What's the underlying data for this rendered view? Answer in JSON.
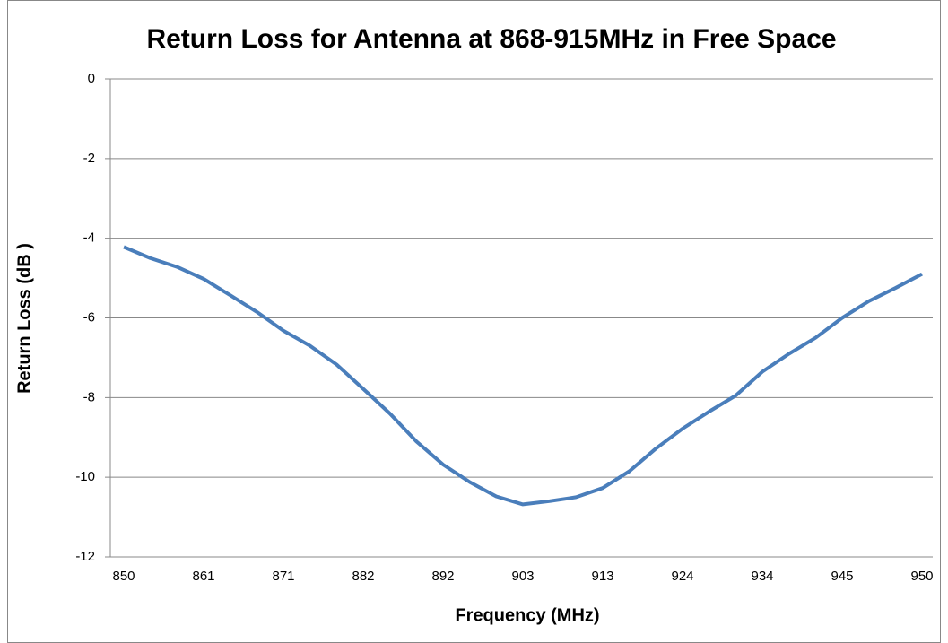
{
  "chart_data": {
    "type": "line",
    "title": "Return Loss for Antenna at 868-915MHz in Free Space",
    "x_label": "Frequency  (MHz)",
    "y_label": "Return Loss (dB )",
    "categories": [
      850,
      null,
      null,
      861,
      null,
      null,
      871,
      null,
      null,
      882,
      null,
      null,
      892,
      null,
      null,
      903,
      null,
      null,
      913,
      null,
      null,
      924,
      null,
      null,
      934,
      null,
      null,
      945,
      null,
      null,
      950
    ],
    "series": [
      {
        "name": "Return Loss",
        "color": "#4a7ebb",
        "values": [
          -4.22,
          -4.5,
          -4.72,
          -5.02,
          -5.43,
          -5.85,
          -6.32,
          -6.7,
          -7.17,
          -7.78,
          -8.4,
          -9.1,
          -9.68,
          -10.12,
          -10.48,
          -10.68,
          -10.6,
          -10.5,
          -10.27,
          -9.85,
          -9.28,
          -8.78,
          -8.35,
          -7.95,
          -7.35,
          -6.9,
          -6.5,
          -6.0,
          -5.58,
          -5.25,
          -4.9
        ]
      }
    ],
    "ylim": [
      -12,
      0
    ],
    "yticks": [
      -12,
      -10,
      -8,
      -6,
      -4,
      -2,
      0
    ],
    "grid": true
  }
}
